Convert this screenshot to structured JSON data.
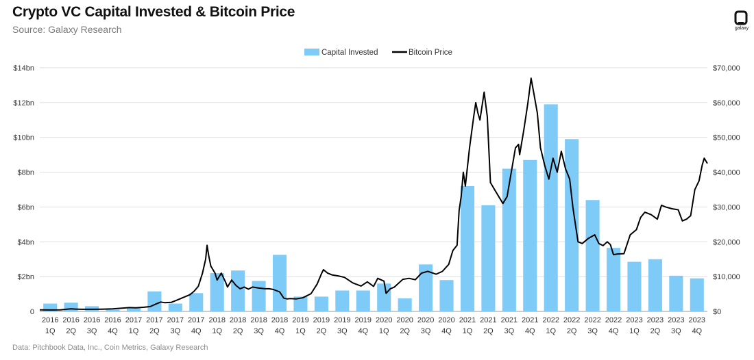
{
  "header": {
    "title": "Crypto VC Capital Invested & Bitcoin Price",
    "subtitle": "Source: Galaxy Research"
  },
  "footer": {
    "note": "Data: Pitchbook Data, Inc., Coin Metrics, Galaxy Research"
  },
  "logo": {
    "text": "galaxy"
  },
  "chart_data": {
    "type": "bar",
    "title": "Crypto VC Capital Invested & Bitcoin Price",
    "legend_position": "top-center",
    "grid": true,
    "categories": [
      [
        "2016",
        "1Q"
      ],
      [
        "2016",
        "2Q"
      ],
      [
        "2016",
        "3Q"
      ],
      [
        "2016",
        "4Q"
      ],
      [
        "2017",
        "1Q"
      ],
      [
        "2017",
        "2Q"
      ],
      [
        "2017",
        "3Q"
      ],
      [
        "2017",
        "4Q"
      ],
      [
        "2018",
        "1Q"
      ],
      [
        "2018",
        "2Q"
      ],
      [
        "2018",
        "3Q"
      ],
      [
        "2018",
        "4Q"
      ],
      [
        "2019",
        "1Q"
      ],
      [
        "2019",
        "2Q"
      ],
      [
        "2019",
        "3Q"
      ],
      [
        "2019",
        "4Q"
      ],
      [
        "2020",
        "1Q"
      ],
      [
        "2020",
        "2Q"
      ],
      [
        "2020",
        "3Q"
      ],
      [
        "2020",
        "4Q"
      ],
      [
        "2021",
        "1Q"
      ],
      [
        "2021",
        "2Q"
      ],
      [
        "2021",
        "3Q"
      ],
      [
        "2021",
        "4Q"
      ],
      [
        "2022",
        "1Q"
      ],
      [
        "2022",
        "2Q"
      ],
      [
        "2022",
        "3Q"
      ],
      [
        "2022",
        "4Q"
      ],
      [
        "2023",
        "1Q"
      ],
      [
        "2023",
        "2Q"
      ],
      [
        "2023",
        "3Q"
      ],
      [
        "2023",
        "4Q"
      ]
    ],
    "y_left": {
      "min": 0,
      "max": 14,
      "step": 2,
      "tick_labels": [
        "0",
        "$2bn",
        "$4bn",
        "$6bn",
        "$8bn",
        "$10bn",
        "$12bn",
        "$14bn"
      ]
    },
    "y_right": {
      "min": 0,
      "max": 70000,
      "step": 10000,
      "tick_labels": [
        "$0",
        "$10,000",
        "$20,000",
        "$30,000",
        "$40,000",
        "$50,000",
        "$60,000",
        "$70,000"
      ]
    },
    "series": [
      {
        "name": "Capital Invested",
        "type": "bar",
        "axis": "left",
        "unit": "$bn",
        "color": "#7ecbf7",
        "values": [
          0.45,
          0.5,
          0.3,
          0.1,
          0.2,
          1.15,
          0.45,
          1.05,
          2.2,
          2.35,
          1.75,
          3.25,
          0.85,
          0.85,
          1.2,
          1.2,
          1.6,
          0.75,
          2.7,
          1.8,
          7.2,
          6.1,
          8.2,
          8.7,
          11.9,
          9.9,
          6.4,
          3.65,
          2.85,
          3.0,
          2.05,
          1.9
        ]
      },
      {
        "name": "Bitcoin Price",
        "type": "line",
        "axis": "right",
        "unit": "$",
        "color": "#000000",
        "points": [
          [
            0,
            430
          ],
          [
            0.5,
            420
          ],
          [
            1,
            450
          ],
          [
            1.3,
            640
          ],
          [
            1.5,
            720
          ],
          [
            1.7,
            660
          ],
          [
            2,
            610
          ],
          [
            2.5,
            610
          ],
          [
            3,
            640
          ],
          [
            3.5,
            730
          ],
          [
            4,
            970
          ],
          [
            4.3,
            1100
          ],
          [
            4.6,
            1050
          ],
          [
            5,
            1200
          ],
          [
            5.3,
            1400
          ],
          [
            5.6,
            2200
          ],
          [
            5.8,
            2700
          ],
          [
            6,
            2500
          ],
          [
            6.3,
            2600
          ],
          [
            6.6,
            3300
          ],
          [
            7,
            4300
          ],
          [
            7.2,
            4800
          ],
          [
            7.4,
            5800
          ],
          [
            7.6,
            7200
          ],
          [
            7.8,
            11000
          ],
          [
            7.95,
            15000
          ],
          [
            8.02,
            19000
          ],
          [
            8.1,
            16000
          ],
          [
            8.2,
            13000
          ],
          [
            8.4,
            11000
          ],
          [
            8.5,
            9000
          ],
          [
            8.7,
            11000
          ],
          [
            8.9,
            8500
          ],
          [
            9,
            7000
          ],
          [
            9.2,
            9000
          ],
          [
            9.4,
            7500
          ],
          [
            9.6,
            6500
          ],
          [
            9.8,
            7000
          ],
          [
            10,
            6400
          ],
          [
            10.2,
            7000
          ],
          [
            10.5,
            6700
          ],
          [
            10.8,
            6500
          ],
          [
            11,
            6500
          ],
          [
            11.2,
            6300
          ],
          [
            11.5,
            5600
          ],
          [
            11.7,
            3800
          ],
          [
            11.85,
            3600
          ],
          [
            12,
            3700
          ],
          [
            12.3,
            3600
          ],
          [
            12.6,
            3900
          ],
          [
            13,
            5100
          ],
          [
            13.3,
            7900
          ],
          [
            13.5,
            10800
          ],
          [
            13.6,
            12000
          ],
          [
            13.8,
            11000
          ],
          [
            14,
            10500
          ],
          [
            14.3,
            10200
          ],
          [
            14.6,
            9800
          ],
          [
            15,
            8200
          ],
          [
            15.4,
            7300
          ],
          [
            15.7,
            8500
          ],
          [
            16,
            7200
          ],
          [
            16.2,
            9500
          ],
          [
            16.5,
            8700
          ],
          [
            16.6,
            5200
          ],
          [
            16.8,
            6500
          ],
          [
            17,
            7000
          ],
          [
            17.4,
            9200
          ],
          [
            17.7,
            9500
          ],
          [
            18,
            9100
          ],
          [
            18.3,
            11000
          ],
          [
            18.6,
            11500
          ],
          [
            19,
            10700
          ],
          [
            19.3,
            11500
          ],
          [
            19.6,
            13500
          ],
          [
            19.8,
            17500
          ],
          [
            20,
            19000
          ],
          [
            20.1,
            29000
          ],
          [
            20.2,
            33000
          ],
          [
            20.3,
            40000
          ],
          [
            20.4,
            36000
          ],
          [
            20.6,
            47000
          ],
          [
            20.8,
            56000
          ],
          [
            20.9,
            60000
          ],
          [
            21,
            57000
          ],
          [
            21.1,
            55000
          ],
          [
            21.3,
            63000
          ],
          [
            21.45,
            56000
          ],
          [
            21.6,
            37000
          ],
          [
            21.8,
            35000
          ],
          [
            22,
            33000
          ],
          [
            22.2,
            31000
          ],
          [
            22.4,
            33000
          ],
          [
            22.6,
            40000
          ],
          [
            22.8,
            47000
          ],
          [
            22.95,
            48000
          ],
          [
            23,
            45000
          ],
          [
            23.2,
            52000
          ],
          [
            23.4,
            60000
          ],
          [
            23.55,
            67000
          ],
          [
            23.7,
            62000
          ],
          [
            23.85,
            57000
          ],
          [
            24,
            47000
          ],
          [
            24.2,
            42000
          ],
          [
            24.4,
            38000
          ],
          [
            24.6,
            44000
          ],
          [
            24.8,
            40000
          ],
          [
            25,
            46000
          ],
          [
            25.2,
            41000
          ],
          [
            25.4,
            38000
          ],
          [
            25.55,
            30000
          ],
          [
            25.7,
            24000
          ],
          [
            25.8,
            20000
          ],
          [
            26,
            19500
          ],
          [
            26.3,
            21000
          ],
          [
            26.6,
            22000
          ],
          [
            26.8,
            19500
          ],
          [
            27,
            18900
          ],
          [
            27.2,
            20000
          ],
          [
            27.35,
            19200
          ],
          [
            27.5,
            16300
          ],
          [
            27.7,
            16500
          ],
          [
            28,
            16600
          ],
          [
            28.3,
            22000
          ],
          [
            28.6,
            23500
          ],
          [
            28.8,
            27000
          ],
          [
            29,
            28500
          ],
          [
            29.3,
            27800
          ],
          [
            29.6,
            26500
          ],
          [
            29.8,
            30500
          ],
          [
            30,
            30000
          ],
          [
            30.3,
            29500
          ],
          [
            30.6,
            29200
          ],
          [
            30.8,
            26000
          ],
          [
            31,
            26500
          ],
          [
            31.2,
            27500
          ],
          [
            31.4,
            35000
          ],
          [
            31.6,
            37500
          ],
          [
            31.75,
            42000
          ],
          [
            31.85,
            44000
          ],
          [
            32,
            42500
          ]
        ]
      }
    ]
  }
}
